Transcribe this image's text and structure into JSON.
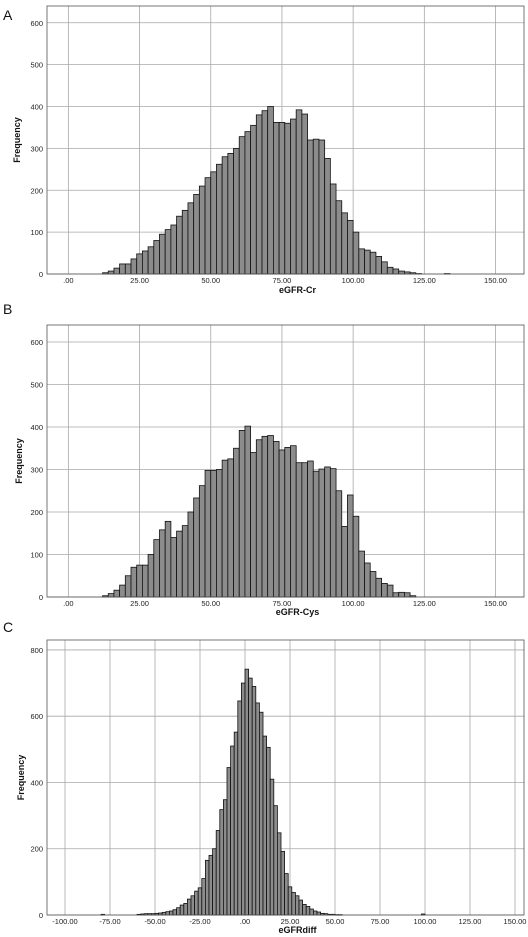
{
  "chart_data": [
    {
      "type": "bar",
      "panel_label": "A",
      "xlabel": "eGFR-Cr",
      "ylabel": "Frequency",
      "xlim": [
        -7.5,
        160
      ],
      "ylim": [
        0,
        640
      ],
      "x_ticks": [
        0,
        25,
        50,
        75,
        100,
        125,
        150
      ],
      "x_tick_labels": [
        ".00",
        "25.00",
        "50.00",
        "75.00",
        "100.00",
        "125.00",
        "150.00"
      ],
      "y_ticks": [
        0,
        100,
        200,
        300,
        400,
        500,
        600
      ],
      "y_tick_labels": [
        "0",
        "100",
        "200",
        "300",
        "400",
        "500",
        "600"
      ],
      "grid": true,
      "bar_color": "#8c8c8c",
      "bin_width": 2,
      "bin_centers": [
        13,
        15,
        17,
        19,
        21,
        23,
        25,
        27,
        29,
        31,
        33,
        35,
        37,
        39,
        41,
        43,
        45,
        47,
        49,
        51,
        53,
        55,
        57,
        59,
        61,
        63,
        65,
        67,
        69,
        71,
        73,
        75,
        77,
        79,
        81,
        83,
        85,
        87,
        89,
        91,
        93,
        95,
        97,
        99,
        101,
        103,
        105,
        107,
        109,
        111,
        113,
        115,
        117,
        119,
        121,
        123,
        125,
        127,
        129,
        131,
        133
      ],
      "values": [
        3,
        7,
        14,
        24,
        24,
        36,
        48,
        55,
        65,
        80,
        95,
        106,
        117,
        138,
        152,
        170,
        190,
        210,
        230,
        244,
        262,
        280,
        288,
        300,
        328,
        340,
        355,
        380,
        390,
        400,
        362,
        362,
        360,
        370,
        392,
        382,
        320,
        322,
        320,
        276,
        215,
        175,
        146,
        128,
        100,
        60,
        57,
        52,
        42,
        29,
        16,
        12,
        7,
        5,
        3,
        1,
        0,
        0,
        0,
        0,
        1
      ]
    },
    {
      "type": "bar",
      "panel_label": "B",
      "xlabel": "eGFR-Cys",
      "ylabel": "Frequency",
      "xlim": [
        -7.5,
        160
      ],
      "ylim": [
        0,
        640
      ],
      "x_ticks": [
        0,
        25,
        50,
        75,
        100,
        125,
        150
      ],
      "x_tick_labels": [
        ".00",
        "25.00",
        "50.00",
        "75.00",
        "100.00",
        "125.00",
        "150.00"
      ],
      "y_ticks": [
        0,
        100,
        200,
        300,
        400,
        500,
        600
      ],
      "y_tick_labels": [
        "0",
        "100",
        "200",
        "300",
        "400",
        "500",
        "600"
      ],
      "grid": true,
      "bar_color": "#8c8c8c",
      "bin_width": 2,
      "bin_centers": [
        13,
        15,
        17,
        19,
        21,
        23,
        25,
        27,
        29,
        31,
        33,
        35,
        37,
        39,
        41,
        43,
        45,
        47,
        49,
        51,
        53,
        55,
        57,
        59,
        61,
        63,
        65,
        67,
        69,
        71,
        73,
        75,
        77,
        79,
        81,
        83,
        85,
        87,
        89,
        91,
        93,
        95,
        97,
        99,
        101,
        103,
        105,
        107,
        109,
        111,
        113,
        115,
        117,
        119,
        121,
        123,
        125,
        127,
        129,
        131
      ],
      "values": [
        3,
        8,
        16,
        28,
        50,
        70,
        75,
        75,
        100,
        135,
        158,
        178,
        140,
        155,
        168,
        200,
        233,
        262,
        298,
        298,
        300,
        322,
        325,
        350,
        392,
        402,
        340,
        370,
        378,
        380,
        366,
        346,
        352,
        356,
        316,
        316,
        320,
        296,
        301,
        306,
        302,
        250,
        166,
        240,
        190,
        108,
        80,
        60,
        44,
        32,
        28,
        10,
        11,
        10,
        3,
        0,
        0,
        0,
        0,
        0
      ]
    },
    {
      "type": "bar",
      "panel_label": "C",
      "xlabel": "eGFRdiff",
      "ylabel": "Frequency",
      "xlim": [
        -110,
        155
      ],
      "ylim": [
        0,
        830
      ],
      "x_ticks": [
        -100,
        -75,
        -50,
        -25,
        0,
        25,
        50,
        75,
        100,
        125,
        150
      ],
      "x_tick_labels": [
        "-100.00",
        "-75.00",
        "-50.00",
        "-25.00",
        ".00",
        "25.00",
        "50.00",
        "75.00",
        "100.00",
        "125.00",
        "150.00"
      ],
      "y_ticks": [
        0,
        200,
        400,
        600,
        800
      ],
      "y_tick_labels": [
        "0",
        "200",
        "400",
        "600",
        "800"
      ],
      "grid": true,
      "bar_color": "#8c8c8c",
      "bin_width": 2,
      "bin_centers": [
        -79,
        -77,
        -75,
        -73,
        -71,
        -69,
        -67,
        -65,
        -63,
        -61,
        -59,
        -57,
        -55,
        -53,
        -51,
        -49,
        -47,
        -45,
        -43,
        -41,
        -39,
        -37,
        -35,
        -33,
        -31,
        -29,
        -27,
        -25,
        -23,
        -21,
        -19,
        -17,
        -15,
        -13,
        -11,
        -9,
        -7,
        -5,
        -3,
        -1,
        1,
        3,
        5,
        7,
        9,
        11,
        13,
        15,
        17,
        19,
        21,
        23,
        25,
        27,
        29,
        31,
        33,
        35,
        37,
        39,
        41,
        43,
        45,
        47,
        49,
        51,
        53,
        55,
        57,
        59,
        61,
        63,
        65,
        67,
        69,
        71,
        73,
        75,
        77,
        79,
        81,
        83,
        85,
        87,
        89,
        91,
        93,
        95,
        97,
        99
      ],
      "values": [
        2,
        0,
        0,
        0,
        0,
        0,
        0,
        0,
        0,
        0,
        2,
        3,
        4,
        4,
        4,
        5,
        6,
        8,
        10,
        12,
        16,
        22,
        30,
        35,
        48,
        58,
        72,
        82,
        110,
        165,
        180,
        200,
        255,
        318,
        348,
        445,
        510,
        552,
        646,
        700,
        742,
        715,
        690,
        640,
        612,
        540,
        506,
        410,
        330,
        248,
        192,
        125,
        85,
        68,
        58,
        45,
        32,
        26,
        18,
        12,
        9,
        5,
        4,
        2,
        2,
        1,
        1,
        0,
        0,
        0,
        0,
        0,
        0,
        0,
        0,
        0,
        0,
        0,
        0,
        0,
        0,
        0,
        0,
        0,
        0,
        0,
        0,
        0,
        0,
        3
      ]
    }
  ]
}
